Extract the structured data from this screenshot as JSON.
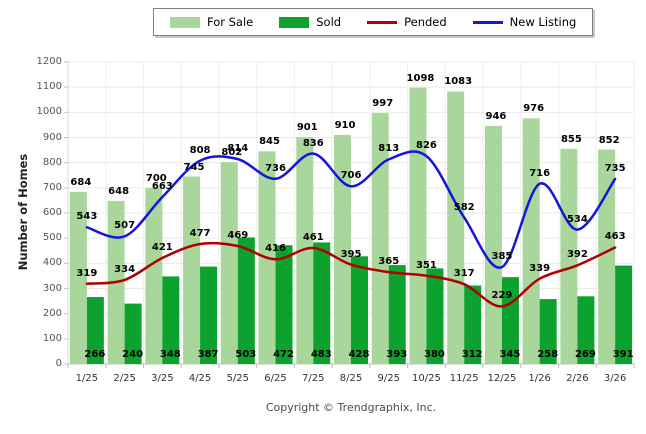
{
  "chart_data": {
    "type": "combo",
    "categories": [
      "1/25",
      "2/25",
      "3/25",
      "4/25",
      "5/25",
      "6/25",
      "7/25",
      "8/25",
      "9/25",
      "10/25",
      "11/25",
      "12/25",
      "1/26",
      "2/26",
      "3/26"
    ],
    "series": [
      {
        "name": "For Sale",
        "type": "bar",
        "color": "#a9d79b",
        "values": [
          684,
          648,
          700,
          745,
          802,
          845,
          901,
          910,
          997,
          1098,
          1083,
          946,
          976,
          855,
          852
        ]
      },
      {
        "name": "Sold",
        "type": "bar",
        "color": "#0ca22d",
        "values": [
          266,
          240,
          348,
          387,
          503,
          472,
          483,
          428,
          393,
          380,
          312,
          345,
          258,
          269,
          391
        ]
      },
      {
        "name": "Pended",
        "type": "line",
        "color": "#b00000",
        "values": [
          319,
          334,
          421,
          477,
          469,
          416,
          461,
          395,
          365,
          351,
          317,
          229,
          339,
          392,
          463
        ]
      },
      {
        "name": "New Listing",
        "type": "line",
        "color": "#1414dd",
        "values": [
          543,
          507,
          663,
          808,
          814,
          736,
          836,
          706,
          813,
          826,
          582,
          385,
          716,
          534,
          735
        ]
      }
    ],
    "title": "",
    "xlabel": "",
    "ylabel": "Number of Homes",
    "ylim": [
      0,
      1200
    ],
    "ytick_step": 100,
    "grid": true,
    "legend_position": "top"
  },
  "footer": {
    "copyright": "Copyright © Trendgraphix, Inc."
  }
}
